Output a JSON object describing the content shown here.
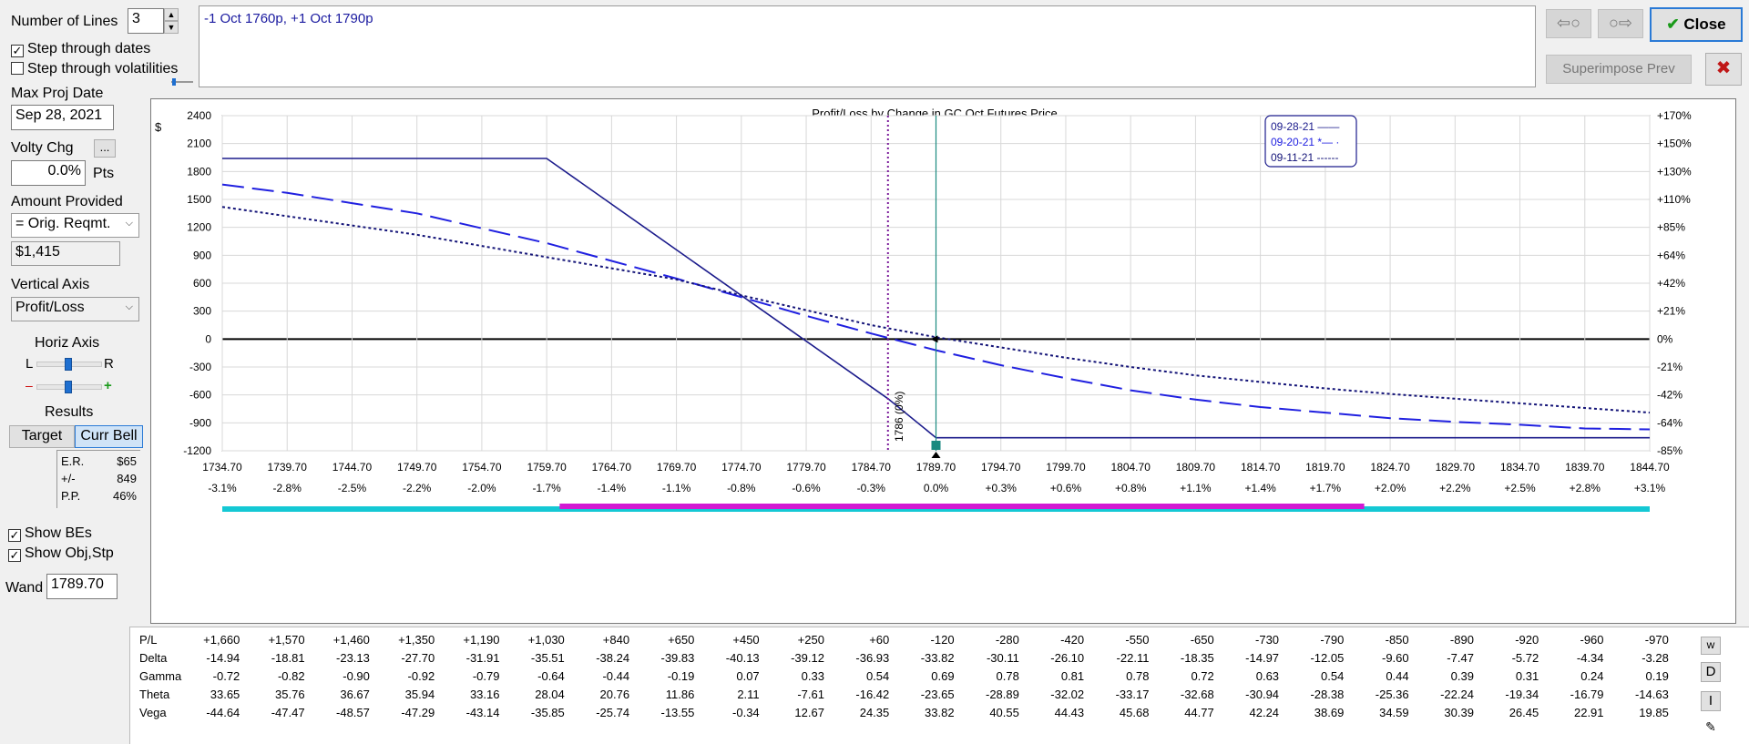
{
  "left": {
    "num_lines_label": "Number of Lines",
    "num_lines_value": "3",
    "step_dates_label": "Step through dates",
    "step_dates_checked": true,
    "step_vols_label": "Step through volatilities",
    "step_vols_checked": false,
    "max_proj_label": "Max Proj Date",
    "max_proj_value": "Sep 28, 2021",
    "volty_label": "Volty Chg",
    "volty_more": "...",
    "volty_value": "0.0%",
    "volty_units": "Pts",
    "amount_label": "Amount Provided",
    "amount_select": "= Orig. Reqmt.",
    "amount_value": "$1,415",
    "vaxis_label": "Vertical Axis",
    "vaxis_select": "Profit/Loss",
    "haxis_label": "Horiz Axis",
    "haxis_l": "L",
    "haxis_r": "R",
    "haxis_minus": "–",
    "haxis_plus": "+",
    "results_label": "Results",
    "target_btn": "Target",
    "currbell_btn": "Curr Bell",
    "results": [
      {
        "k": "E.R.",
        "v": "$65"
      },
      {
        "k": "+/-",
        "v": "849"
      },
      {
        "k": "P.P.",
        "v": "46%"
      }
    ],
    "show_bes_label": "Show BEs",
    "show_bes_checked": true,
    "show_objstp_label": "Show Obj,Stp",
    "show_objstp_checked": true,
    "wand_label": "Wand",
    "wand_value": "1789.70"
  },
  "top": {
    "position_text": "-1 Oct 1760p, +1 Oct 1790p",
    "back_arrow": "⇦○",
    "fwd_arrow": "○⇨",
    "close_label": "Close",
    "superimpose_label": "Superimpose Prev",
    "x_label": "✖"
  },
  "chart_data": {
    "type": "line",
    "title": "Profit/Loss by Change in GC Oct Futures Price",
    "ylabel": "$",
    "x_ticks": [
      "1734.70",
      "1739.70",
      "1744.70",
      "1749.70",
      "1754.70",
      "1759.70",
      "1764.70",
      "1769.70",
      "1774.70",
      "1779.70",
      "1784.70",
      "1789.70",
      "1794.70",
      "1799.70",
      "1804.70",
      "1809.70",
      "1814.70",
      "1819.70",
      "1824.70",
      "1829.70",
      "1834.70",
      "1839.70",
      "1844.70"
    ],
    "x_pct_ticks": [
      "-3.1%",
      "-2.8%",
      "-2.5%",
      "-2.2%",
      "-2.0%",
      "-1.7%",
      "-1.4%",
      "-1.1%",
      "-0.8%",
      "-0.6%",
      "-0.3%",
      "0.0%",
      "+0.3%",
      "+0.6%",
      "+0.8%",
      "+1.1%",
      "+1.4%",
      "+1.7%",
      "+2.0%",
      "+2.2%",
      "+2.5%",
      "+2.8%",
      "+3.1%"
    ],
    "y_ticks": [
      "2400",
      "2100",
      "1800",
      "1500",
      "1200",
      "900",
      "600",
      "300",
      "0",
      "-300",
      "-600",
      "-900",
      "-1200"
    ],
    "y_pct_ticks": [
      "+170%",
      "+150%",
      "+130%",
      "+110%",
      "+85%",
      "+64%",
      "+42%",
      "+21%",
      "0%",
      "-21%",
      "-42%",
      "-64%",
      "-85%"
    ],
    "xlim": [
      1734.7,
      1844.7
    ],
    "ylim": [
      -1200,
      2400
    ],
    "grid": true,
    "legend_position": "top-right",
    "current_price": 1789.7,
    "breakeven": 1786,
    "breakeven_label": "1786 (0%)",
    "series": [
      {
        "name": "09-28-21 ——",
        "color": "#1c1c8c",
        "dash": "",
        "x": [
          1734.7,
          1759.7,
          1786,
          1789.7,
          1844.7
        ],
        "y": [
          1940,
          1940,
          -640,
          -1060,
          -1060
        ]
      },
      {
        "name": "09-20-21 *— ·",
        "color": "#2020e0",
        "dash": "24 9",
        "x": [
          1734.7,
          1739.7,
          1744.7,
          1749.7,
          1754.7,
          1759.7,
          1764.7,
          1769.7,
          1774.7,
          1779.7,
          1784.7,
          1789.7,
          1794.7,
          1799.7,
          1804.7,
          1809.7,
          1814.7,
          1819.7,
          1824.7,
          1829.7,
          1834.7,
          1839.7,
          1844.7
        ],
        "y": [
          1660,
          1570,
          1460,
          1350,
          1190,
          1030,
          840,
          650,
          450,
          250,
          60,
          -120,
          -280,
          -420,
          -550,
          -650,
          -730,
          -790,
          -850,
          -890,
          -920,
          -960,
          -970
        ]
      },
      {
        "name": "09-11-21 ------",
        "color": "#141478",
        "dash": "3 3",
        "x": [
          1734.7,
          1739.7,
          1744.7,
          1749.7,
          1754.7,
          1759.7,
          1764.7,
          1769.7,
          1774.7,
          1779.7,
          1784.7,
          1789.7,
          1794.7,
          1799.7,
          1804.7,
          1809.7,
          1814.7,
          1819.7,
          1824.7,
          1829.7,
          1834.7,
          1839.7,
          1844.7
        ],
        "y": [
          1420,
          1320,
          1220,
          1120,
          1000,
          880,
          760,
          640,
          470,
          310,
          150,
          20,
          -90,
          -200,
          -300,
          -390,
          -460,
          -530,
          -590,
          -640,
          -690,
          -740,
          -790
        ]
      }
    ]
  },
  "greeks": {
    "rows": [
      {
        "label": "P/L",
        "values": [
          "+1,660",
          "+1,570",
          "+1,460",
          "+1,350",
          "+1,190",
          "+1,030",
          "+840",
          "+650",
          "+450",
          "+250",
          "+60",
          "-120",
          "-280",
          "-420",
          "-550",
          "-650",
          "-730",
          "-790",
          "-850",
          "-890",
          "-920",
          "-960",
          "-970"
        ]
      },
      {
        "label": "Delta",
        "values": [
          "-14.94",
          "-18.81",
          "-23.13",
          "-27.70",
          "-31.91",
          "-35.51",
          "-38.24",
          "-39.83",
          "-40.13",
          "-39.12",
          "-36.93",
          "-33.82",
          "-30.11",
          "-26.10",
          "-22.11",
          "-18.35",
          "-14.97",
          "-12.05",
          "-9.60",
          "-7.47",
          "-5.72",
          "-4.34",
          "-3.28"
        ]
      },
      {
        "label": "Gamma",
        "values": [
          "-0.72",
          "-0.82",
          "-0.90",
          "-0.92",
          "-0.79",
          "-0.64",
          "-0.44",
          "-0.19",
          "0.07",
          "0.33",
          "0.54",
          "0.69",
          "0.78",
          "0.81",
          "0.78",
          "0.72",
          "0.63",
          "0.54",
          "0.44",
          "0.39",
          "0.31",
          "0.24",
          "0.19"
        ]
      },
      {
        "label": "Theta",
        "values": [
          "33.65",
          "35.76",
          "36.67",
          "35.94",
          "33.16",
          "28.04",
          "20.76",
          "11.86",
          "2.11",
          "-7.61",
          "-16.42",
          "-23.65",
          "-28.89",
          "-32.02",
          "-33.17",
          "-32.68",
          "-30.94",
          "-28.38",
          "-25.36",
          "-22.24",
          "-19.34",
          "-16.79",
          "-14.63"
        ]
      },
      {
        "label": "Vega",
        "values": [
          "-44.64",
          "-47.47",
          "-48.57",
          "-47.29",
          "-43.14",
          "-35.85",
          "-25.74",
          "-13.55",
          "-0.34",
          "12.67",
          "24.35",
          "33.82",
          "40.55",
          "44.43",
          "45.68",
          "44.77",
          "42.24",
          "38.69",
          "34.59",
          "30.39",
          "26.45",
          "22.91",
          "19.85"
        ]
      }
    ],
    "side_w": "w",
    "side_d": "D",
    "side_i": "I"
  }
}
